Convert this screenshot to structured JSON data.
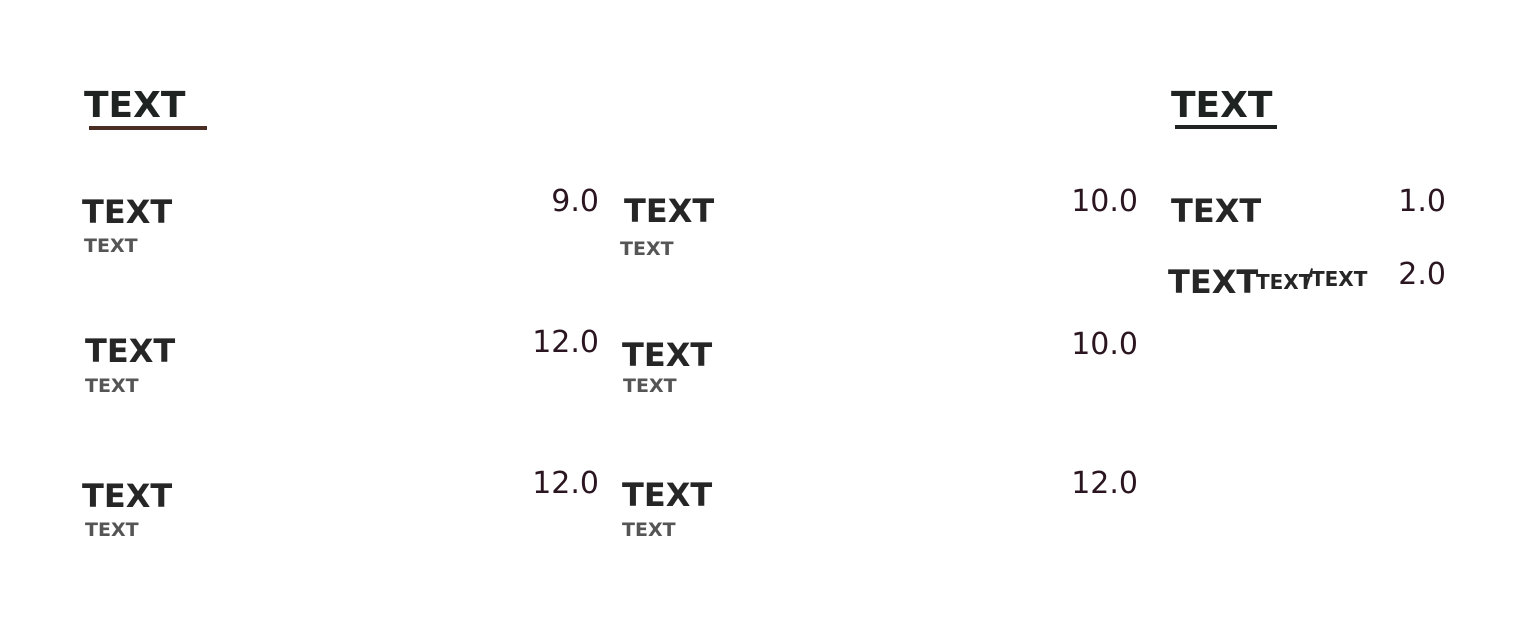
{
  "colors": {
    "heading_left_rule": "#4a2e24",
    "heading_right_rule": "#1f2422",
    "price_text": "#2a1520",
    "name_text": "#262626",
    "sub_text": "#555555"
  },
  "left_section": {
    "heading": "TEXT",
    "items": [
      {
        "name": "TEXT",
        "sub": "TEXT",
        "price": "9.0"
      },
      {
        "name": "TEXT",
        "sub": "TEXT",
        "price": "12.0"
      },
      {
        "name": "TEXT",
        "sub": "TEXT",
        "price": "12.0"
      }
    ]
  },
  "middle_section": {
    "items": [
      {
        "name": "TEXT",
        "sub": "TEXT",
        "price": "10.0"
      },
      {
        "name": "TEXT",
        "sub": "TEXT",
        "price": "10.0"
      },
      {
        "name": "TEXT",
        "sub": "TEXT",
        "price": "12.0"
      }
    ]
  },
  "right_section": {
    "heading": "TEXT",
    "items": [
      {
        "name": "TEXT",
        "price": "1.0"
      },
      {
        "name": "TEXT",
        "option_a": "TEXT",
        "option_b": "TEXT",
        "price": "2.0"
      }
    ]
  }
}
